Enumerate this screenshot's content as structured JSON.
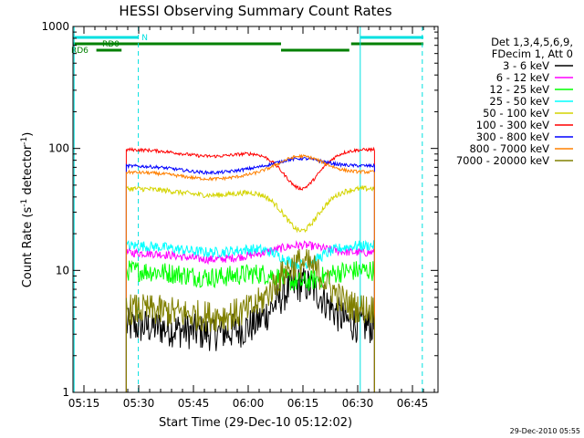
{
  "chart_data": {
    "type": "line",
    "title": "HESSI Observing Summary Count Rates",
    "xlabel": "Start Time (29-Dec-10 05:12:02)",
    "ylabel_main": "Count Rate (s",
    "ylabel_sup1": "-1",
    "ylabel_mid": " detector",
    "ylabel_sup2": "-1",
    "ylabel_end": ")",
    "yscale": "log",
    "xlim": [
      0,
      100
    ],
    "ylim": [
      1,
      1000
    ],
    "x_ticks": [
      {
        "label": "05:15",
        "x": 3
      },
      {
        "label": "05:30",
        "x": 18
      },
      {
        "label": "05:45",
        "x": 33
      },
      {
        "label": "06:00",
        "x": 48
      },
      {
        "label": "06:15",
        "x": 63
      },
      {
        "label": "06:30",
        "x": 78
      },
      {
        "label": "06:45",
        "x": 93
      }
    ],
    "y_ticks": [
      {
        "label": "1",
        "y": 1
      },
      {
        "label": "10",
        "y": 10
      },
      {
        "label": "100",
        "y": 100
      },
      {
        "label": "1000",
        "y": 1000
      }
    ],
    "legend_header": [
      "Det 1,3,4,5,6,9,",
      "FDecim 1, Att 0"
    ],
    "legend_position": "right",
    "series": [
      {
        "name": "3 - 6 keV",
        "color": "#000000",
        "level": 3.5,
        "noise": 0.35,
        "flare": 2.2
      },
      {
        "name": "6 - 12 keV",
        "color": "#ff00ff",
        "level": 14,
        "noise": 0.08,
        "flare": 1.15
      },
      {
        "name": "12 - 25 keV",
        "color": "#00ff00",
        "level": 10,
        "noise": 0.2,
        "flare": 0.8
      },
      {
        "name": "25 - 50 keV",
        "color": "#00ffff",
        "level": 16,
        "noise": 0.1,
        "flare": 0.7
      },
      {
        "name": "50 - 100 keV",
        "color": "#d4d400",
        "level": 47,
        "noise": 0.05,
        "flare": 0.45
      },
      {
        "name": "100 - 300 keV",
        "color": "#ff0000",
        "level": 98,
        "noise": 0.03,
        "flare": 0.48
      },
      {
        "name": "300 - 800 keV",
        "color": "#0000ff",
        "level": 72,
        "noise": 0.03,
        "flare": 1.15
      },
      {
        "name": "800 - 7000 keV",
        "color": "#ff8000",
        "level": 64,
        "noise": 0.03,
        "flare": 1.35
      },
      {
        "name": "7000 - 20000 keV",
        "color": "#808000",
        "level": 4.8,
        "noise": 0.3,
        "flare": 2.4
      }
    ],
    "data_start_x": 14.6,
    "data_end_x": 82.6,
    "flare_peak_x": 62.5,
    "event_lines": [
      {
        "x": 0.3,
        "style": "solid",
        "color": "#00e0e0"
      },
      {
        "x": 17.9,
        "style": "dashed",
        "color": "#00e0e0"
      },
      {
        "x": 78.7,
        "style": "solid",
        "color": "#00e0e0"
      },
      {
        "x": 95.7,
        "style": "dashed",
        "color": "#00e0e0"
      }
    ],
    "flags": [
      {
        "label": "N",
        "color": "#00e0e0",
        "segments": [
          [
            0,
            17.9
          ],
          [
            78.7,
            96
          ]
        ]
      },
      {
        "label": "RD0",
        "color": "#008000",
        "segments": [
          [
            0,
            57
          ],
          [
            76.2,
            96
          ]
        ]
      },
      {
        "label": "RD6",
        "color": "#008000",
        "segments": [
          [
            6.4,
            13.3
          ],
          [
            57,
            75.7
          ]
        ]
      }
    ]
  },
  "footer": {
    "timestamp": "29-Dec-2010 05:55"
  }
}
